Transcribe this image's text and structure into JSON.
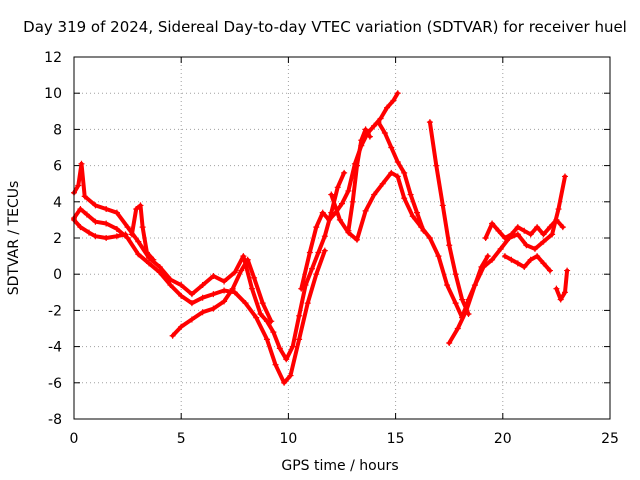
{
  "chart_data": {
    "type": "line",
    "title": "Day 319 of 2024, Sidereal Day-to-day VTEC variation (SDTVAR) for receiver huel",
    "xlabel": "GPS time / hours",
    "ylabel": "SDTVAR / TECUs",
    "xlim": [
      0,
      25
    ],
    "ylim": [
      -8,
      12
    ],
    "xticks": [
      0,
      5,
      10,
      15,
      20,
      25
    ],
    "yticks": [
      -8,
      -6,
      -4,
      -2,
      0,
      2,
      4,
      6,
      8,
      10,
      12
    ],
    "grid": true,
    "marker": "+",
    "color": "#ff0000",
    "series": [
      {
        "name": "s1",
        "x": [
          0,
          0.2,
          0.35,
          0.5,
          1.0,
          1.5,
          2.0,
          2.5,
          3.0,
          3.5,
          4.0,
          4.5,
          5.0,
          5.5,
          6.0,
          6.5,
          7.0,
          7.5,
          7.9,
          8.3,
          8.7,
          9.0,
          9.3,
          9.6,
          9.9,
          10.2,
          10.5,
          10.8,
          11.1,
          11.4,
          11.7,
          12.0,
          12.3,
          12.6
        ],
        "y": [
          4.5,
          4.9,
          6.1,
          4.3,
          3.8,
          3.6,
          3.4,
          2.6,
          1.8,
          0.9,
          0.4,
          -0.3,
          -0.6,
          -1.1,
          -0.6,
          -0.1,
          -0.4,
          0.1,
          1.0,
          -0.8,
          -2.2,
          -2.6,
          -3.2,
          -4.1,
          -4.7,
          -4.0,
          -2.3,
          -0.6,
          0.3,
          1.2,
          2.1,
          3.4,
          4.8,
          5.6
        ]
      },
      {
        "name": "s2",
        "x": [
          0,
          0.3,
          0.6,
          1.0,
          1.5,
          2.0,
          2.5,
          3.0,
          3.5,
          4.0,
          4.5,
          5.0,
          5.5,
          6.0,
          6.5,
          7.0,
          7.5,
          8.0,
          8.5,
          9.0,
          9.4,
          9.8,
          10.1,
          10.5,
          10.9,
          11.3,
          11.7
        ],
        "y": [
          3.1,
          3.6,
          3.3,
          2.9,
          2.8,
          2.5,
          2.0,
          1.1,
          0.6,
          0.1,
          -0.6,
          -1.2,
          -1.6,
          -1.3,
          -1.1,
          -0.9,
          -1.0,
          -1.6,
          -2.4,
          -3.6,
          -5.0,
          -6.0,
          -5.6,
          -3.6,
          -1.6,
          0.0,
          1.3
        ]
      },
      {
        "name": "s3",
        "x": [
          0,
          0.3,
          0.7,
          1.0,
          1.5,
          2.0,
          2.4
        ],
        "y": [
          3.0,
          2.6,
          2.3,
          2.1,
          2.0,
          2.1,
          2.2
        ]
      },
      {
        "name": "s4",
        "x": [
          2.7,
          2.9,
          3.1,
          3.2,
          3.4,
          3.7
        ],
        "y": [
          2.2,
          3.6,
          3.8,
          2.6,
          1.2,
          0.8
        ]
      },
      {
        "name": "s5",
        "x": [
          4.6,
          5.0,
          5.5,
          6.0,
          6.5,
          7.0,
          7.4,
          7.8,
          8.1,
          8.4,
          8.8,
          9.2
        ],
        "y": [
          -3.4,
          -2.9,
          -2.5,
          -2.1,
          -1.9,
          -1.5,
          -0.8,
          0.2,
          0.8,
          -0.2,
          -1.6,
          -2.6
        ]
      },
      {
        "name": "s6",
        "x": [
          10.6,
          11.0,
          11.3,
          11.6,
          11.9,
          12.2,
          12.5,
          12.8,
          13.1,
          13.4,
          13.7,
          14.0,
          14.3,
          14.6,
          14.9,
          15.1
        ],
        "y": [
          -0.8,
          1.2,
          2.6,
          3.4,
          3.0,
          3.4,
          3.9,
          4.6,
          6.1,
          7.1,
          7.8,
          8.2,
          8.6,
          9.2,
          9.6,
          10.0
        ]
      },
      {
        "name": "s7",
        "x": [
          12.0,
          12.4,
          12.8,
          13.2,
          13.6,
          14.0,
          14.4,
          14.8,
          15.1,
          15.4,
          15.8,
          16.2,
          16.6,
          17.0,
          17.4,
          17.8,
          18.1,
          18.4,
          18.7,
          19.0,
          19.3
        ],
        "y": [
          4.4,
          3.0,
          2.3,
          1.9,
          3.5,
          4.4,
          5.0,
          5.6,
          5.4,
          4.2,
          3.2,
          2.6,
          2.0,
          1.0,
          -0.6,
          -1.6,
          -2.4,
          -1.4,
          -0.6,
          0.4,
          1.0
        ]
      },
      {
        "name": "s8",
        "x": [
          14.2,
          14.5,
          14.8,
          15.1,
          15.4,
          15.7,
          16.0,
          16.3
        ],
        "y": [
          8.4,
          7.8,
          7.0,
          6.2,
          5.6,
          4.4,
          3.4,
          2.4
        ]
      },
      {
        "name": "s9",
        "x": [
          16.6,
          16.9,
          17.2,
          17.5,
          17.8,
          18.1,
          18.4
        ],
        "y": [
          8.4,
          6.0,
          3.8,
          1.6,
          0.0,
          -1.4,
          -2.2
        ]
      },
      {
        "name": "s10",
        "x": [
          17.5,
          17.9,
          18.3,
          18.7,
          19.1,
          19.5,
          19.9,
          20.3,
          20.7,
          21.1,
          21.5,
          21.9,
          22.3,
          22.6,
          22.9
        ],
        "y": [
          -3.8,
          -3.0,
          -2.0,
          -0.6,
          0.4,
          0.8,
          1.4,
          2.0,
          2.2,
          1.6,
          1.4,
          1.8,
          2.2,
          3.6,
          5.4
        ]
      },
      {
        "name": "s11",
        "x": [
          19.2,
          19.5,
          19.8,
          20.1,
          20.4,
          20.7,
          21.0,
          21.3,
          21.6,
          21.9,
          22.2,
          22.5,
          22.8
        ],
        "y": [
          2.0,
          2.8,
          2.4,
          2.0,
          2.2,
          2.6,
          2.4,
          2.2,
          2.6,
          2.2,
          2.6,
          3.0,
          2.6
        ]
      },
      {
        "name": "s12",
        "x": [
          20.1,
          20.4,
          20.7,
          21.0,
          21.3,
          21.6,
          21.9,
          22.2
        ],
        "y": [
          1.0,
          0.8,
          0.6,
          0.4,
          0.8,
          1.0,
          0.6,
          0.2
        ]
      },
      {
        "name": "s13",
        "x": [
          22.5,
          22.7,
          22.9,
          23.0
        ],
        "y": [
          -0.8,
          -1.4,
          -1.0,
          0.2
        ]
      },
      {
        "name": "s14",
        "x": [
          12.8,
          13.0,
          13.2,
          13.4,
          13.6,
          13.8
        ],
        "y": [
          2.4,
          4.0,
          6.0,
          7.4,
          8.0,
          7.6
        ]
      }
    ]
  }
}
